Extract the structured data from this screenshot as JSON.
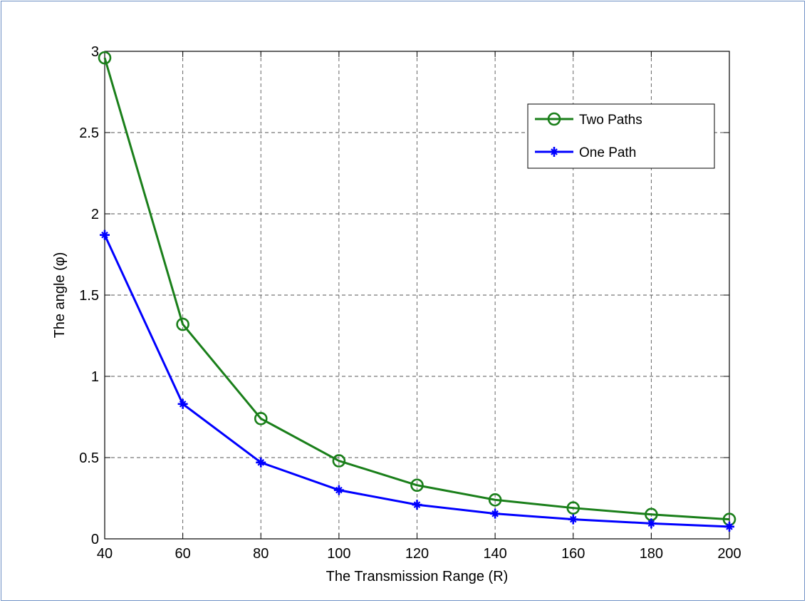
{
  "chart_data": {
    "type": "line",
    "title": "",
    "xlabel": "The Transmission Range (R)",
    "ylabel_prefix": "The angle (",
    "ylabel_symbol": "φ",
    "ylabel_suffix": ")",
    "xlim": [
      40,
      200
    ],
    "ylim": [
      0,
      3
    ],
    "xticks": [
      40,
      60,
      80,
      100,
      120,
      140,
      160,
      180,
      200
    ],
    "yticks": [
      0,
      0.5,
      1,
      1.5,
      2,
      2.5,
      3
    ],
    "ytick_labels": [
      "0",
      "0.5",
      "1",
      "1.5",
      "2",
      "2.5",
      "3"
    ],
    "grid": true,
    "grid_style": "dashed",
    "legend_position": "top-right",
    "x": [
      40,
      60,
      80,
      100,
      120,
      140,
      160,
      180,
      200
    ],
    "series": [
      {
        "name": "Two Paths",
        "color": "#1a7f1a",
        "marker": "circle",
        "values": [
          2.96,
          1.32,
          0.74,
          0.48,
          0.33,
          0.24,
          0.19,
          0.15,
          0.12
        ]
      },
      {
        "name": "One Path",
        "color": "#0000ff",
        "marker": "star",
        "values": [
          1.87,
          0.83,
          0.47,
          0.3,
          0.21,
          0.155,
          0.12,
          0.095,
          0.075
        ]
      }
    ]
  }
}
